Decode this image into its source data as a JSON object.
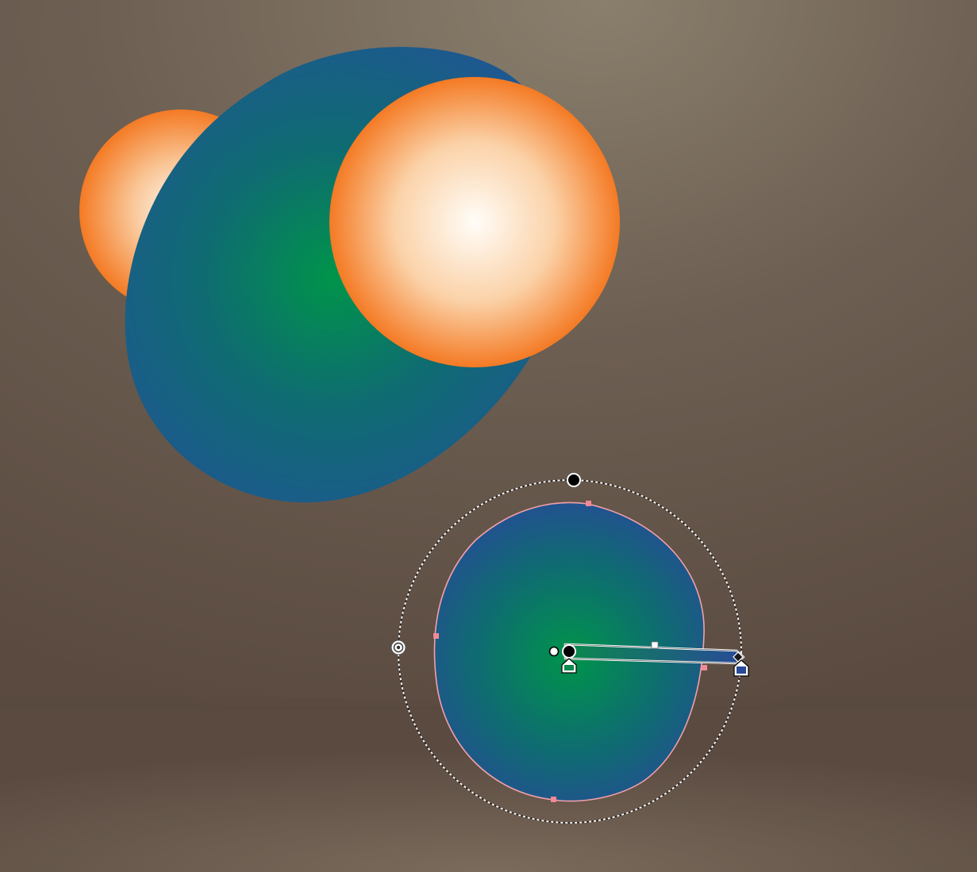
{
  "app": {
    "name": "",
    "active_tool": "gradient-tool",
    "gradient_type": "radial"
  },
  "colors": {
    "backdrop_light": "#8a7f6d",
    "backdrop_mid": "#6d5f52",
    "backdrop_dark": "#5a4a40",
    "floor_light": "#7a6b5c",
    "sphere_edge_orange": "#f47a24",
    "sphere_center_white": "#fffdf8",
    "blob_center_green": "#00944a",
    "blob_mid_teal": "#0f6b72",
    "blob_edge_blue": "#1e5890",
    "path_outline_pink": "#f2a0a8",
    "anchor_pink": "#f08a96",
    "bounding_dotted": "#ffffff",
    "handle_black": "#000000",
    "handle_white": "#ffffff",
    "annotator_start_green": "#0a8a4c",
    "annotator_end_blue": "#284a98"
  },
  "gradient_annotator": {
    "color_stops": [
      {
        "name": "start-stop",
        "color": "#0a8a4c",
        "location": 0
      },
      {
        "name": "end-stop",
        "color": "#284a98",
        "location": 100
      }
    ],
    "midpoint_location": 50
  },
  "objects": [
    {
      "name": "back-sphere",
      "fill": "radial",
      "stops": [
        "#fffdf8",
        "#f47a24"
      ]
    },
    {
      "name": "large-blob",
      "fill": "radial",
      "stops": [
        "#00944a",
        "#0f6b72",
        "#1e5890"
      ]
    },
    {
      "name": "front-sphere",
      "fill": "radial",
      "stops": [
        "#fffdf8",
        "#f47a24"
      ]
    },
    {
      "name": "selected-blob",
      "fill": "radial",
      "stops": [
        "#00944a",
        "#0f6b72",
        "#284a98"
      ],
      "selected": true
    }
  ]
}
